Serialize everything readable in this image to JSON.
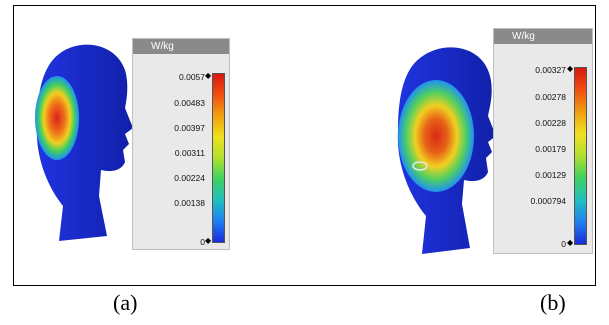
{
  "panels": [
    {
      "id": "a",
      "caption": "(a)",
      "legend": {
        "unit": "W/kg",
        "ticks": [
          "0.0057",
          "0.00483",
          "0.00397",
          "0.00311",
          "0.00224",
          "0.00138",
          "0"
        ]
      }
    },
    {
      "id": "b",
      "caption": "(b)",
      "legend": {
        "unit": "W/kg",
        "ticks": [
          "0.00327",
          "0.00278",
          "0.00228",
          "0.00179",
          "0.00129",
          "0.000794",
          "0"
        ]
      }
    }
  ],
  "colors": {
    "head_base": "#1a2bd8",
    "hot": "#e02018",
    "warm": "#f0c020",
    "mid": "#30d060",
    "cool": "#20a0f0"
  }
}
